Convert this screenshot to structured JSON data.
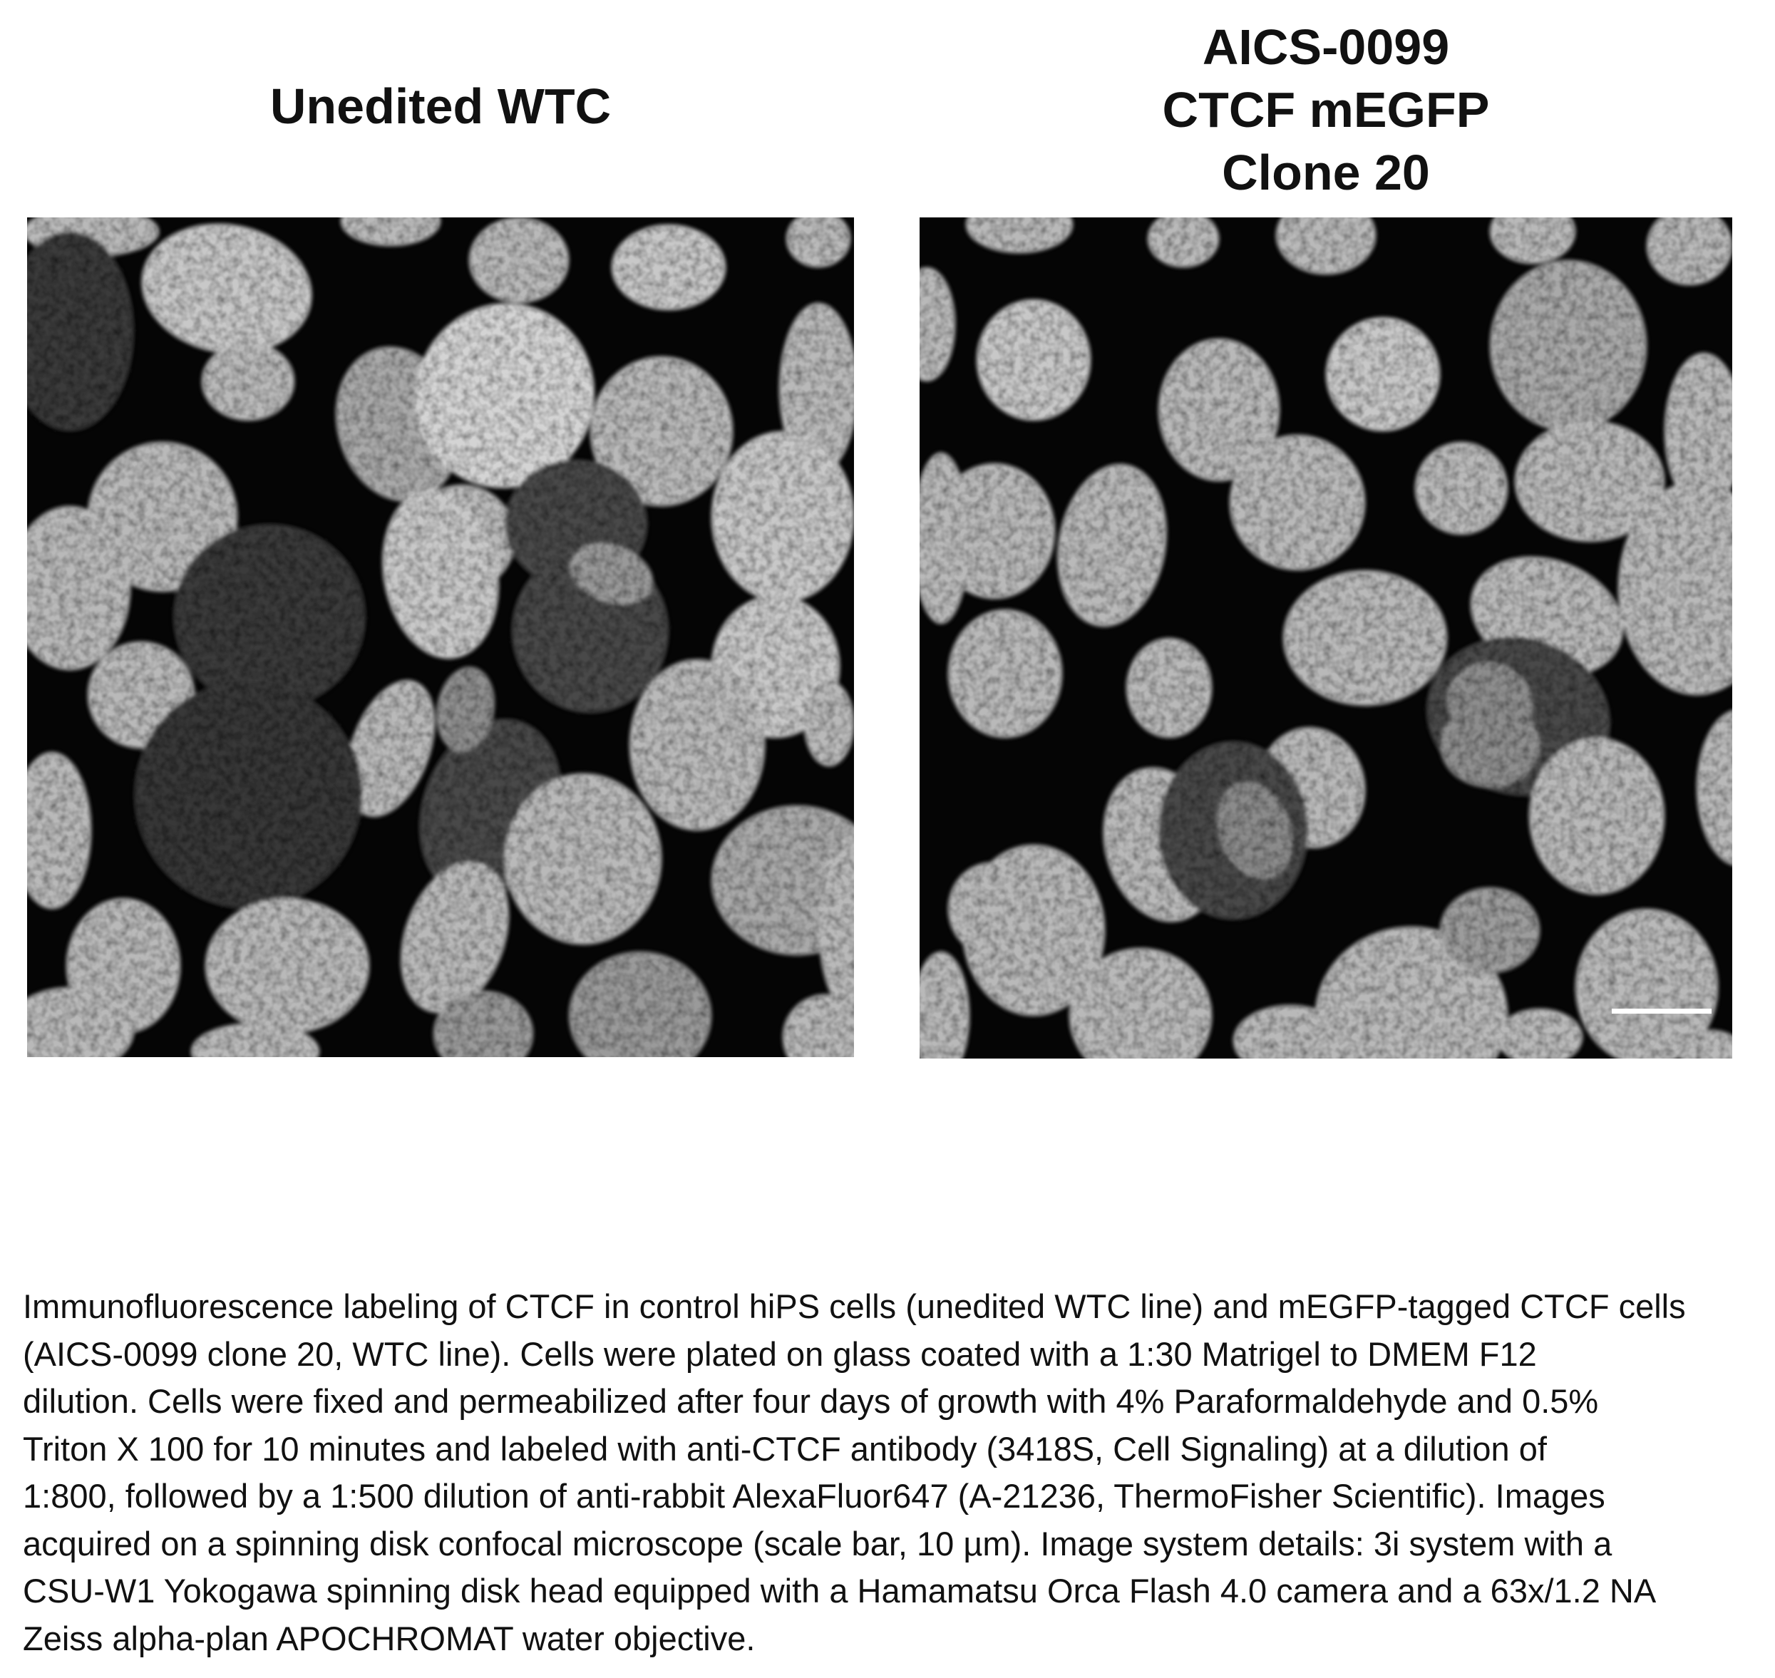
{
  "left_panel": {
    "title_lines": [
      "Unedited WTC"
    ]
  },
  "right_panel": {
    "title_lines": [
      "AICS-0099",
      "CTCF mEGFP",
      "Clone 20"
    ],
    "scale_bar": "10 µm"
  },
  "caption": {
    "lines": [
      "Immunofluorescence labeling of CTCF in control hiPS cells (unedited WTC line) and mEGFP-tagged CTCF cells",
      "(AICS-0099 clone 20, WTC line).  Cells were plated on glass coated with a 1:30 Matrigel to DMEM F12",
      "dilution. Cells were fixed and permeabilized after four days of growth with 4% Paraformaldehyde and 0.5%",
      "Triton X 100 for 10 minutes and labeled with anti-CTCF antibody (3418S, Cell Signaling) at a dilution of",
      "1:800, followed by a 1:500 dilution of anti-rabbit AlexaFluor647 (A-21236, ThermoFisher Scientific). Images",
      "acquired on a spinning disk confocal microscope (scale bar, 10 µm). Image system details: 3i system with a",
      "CSU-W1 Yokogawa spinning disk head equipped with a Hamamatsu Orca Flash 4.0 camera and a 63x/1.2 NA",
      "Zeiss alpha-plan APOCHROMAT water objective."
    ]
  },
  "colors": {
    "background": "#ffffff",
    "image_background": "#050505",
    "text": "#111111"
  }
}
